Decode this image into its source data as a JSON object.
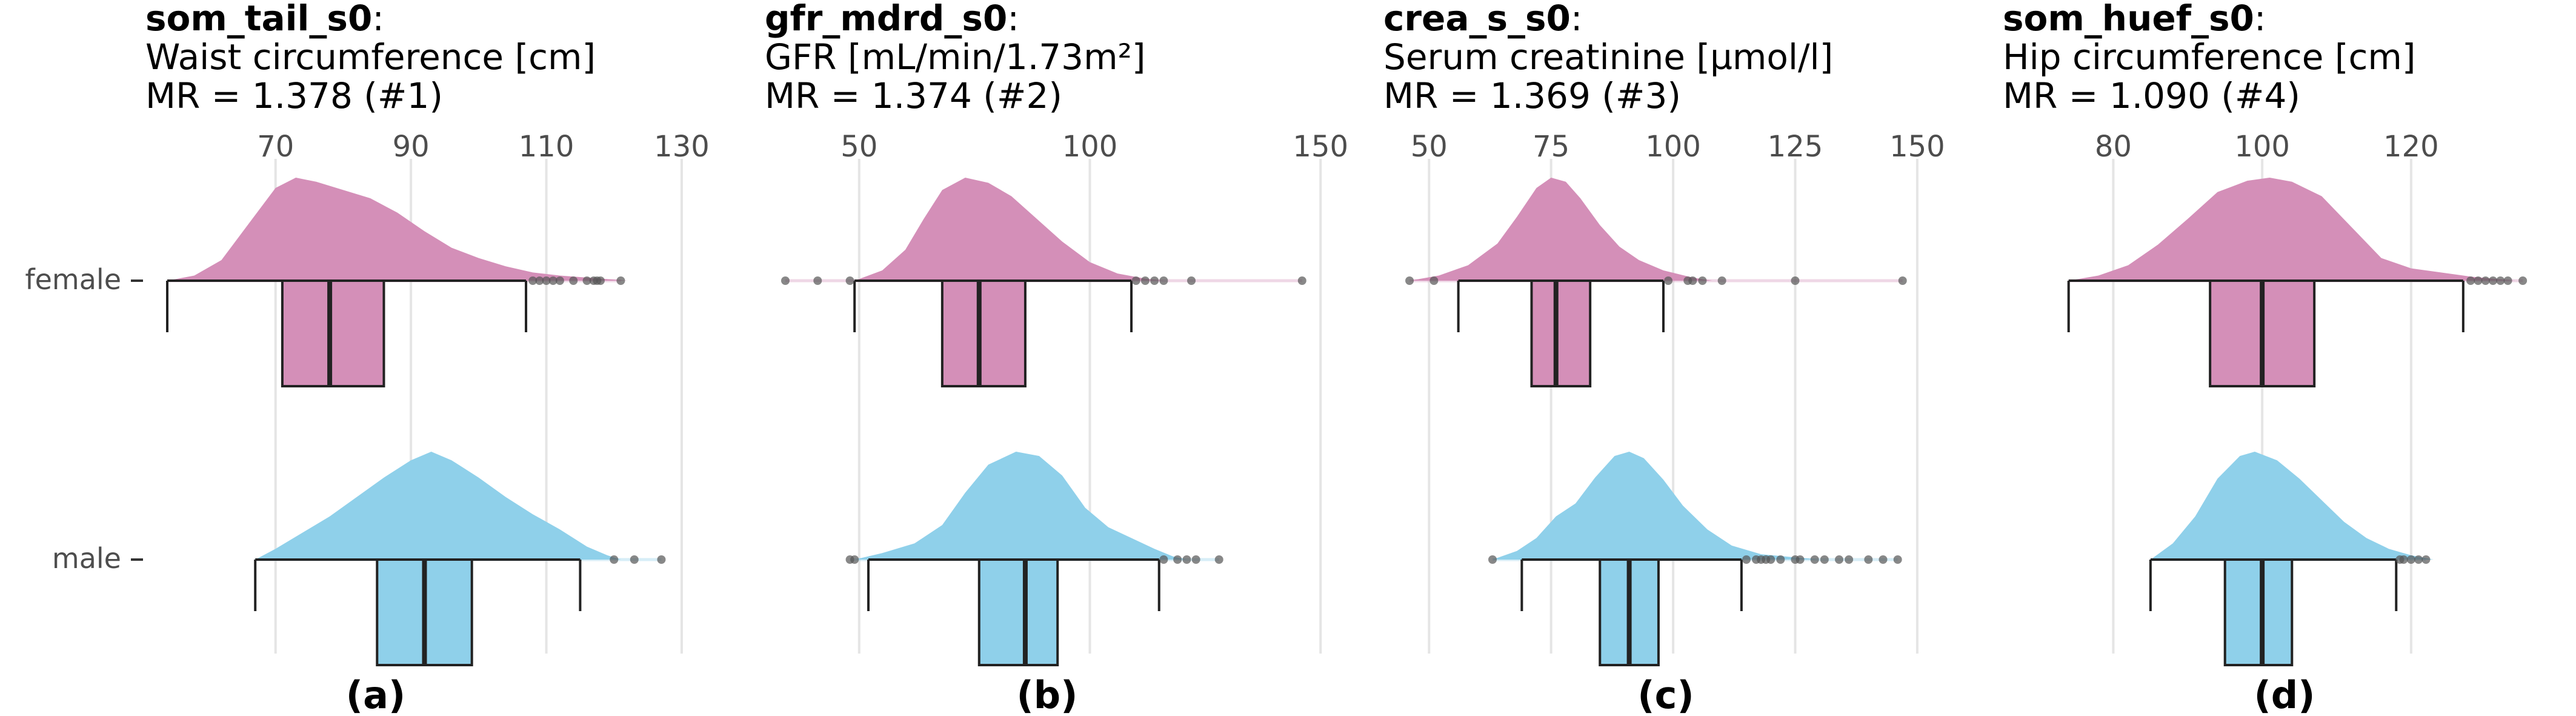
{
  "category_labels": [
    "female",
    "male"
  ],
  "colors": {
    "female": "#d48fb8",
    "male": "#8fd0ea",
    "outline": "#222222",
    "grid": "#e5e5e5",
    "outlier": "#555555"
  },
  "chart_data": [
    {
      "type": "boxplot-density",
      "tag": "(a)",
      "var_name": "som_tail_s0",
      "title_suffix": ":",
      "description": "Waist circumference [cm]",
      "mr_text": "MR = 1.378 (#1)",
      "xlim": [
        54,
        136
      ],
      "ticks": [
        70,
        90,
        110,
        130
      ],
      "grid_on": true,
      "groups": [
        {
          "name": "female",
          "min": 54,
          "q1": 71,
          "median": 78,
          "q3": 86,
          "max": 107,
          "density": [
            [
              54,
              0
            ],
            [
              58,
              0.05
            ],
            [
              62,
              0.2
            ],
            [
              66,
              0.55
            ],
            [
              70,
              0.9
            ],
            [
              73,
              1.0
            ],
            [
              76,
              0.96
            ],
            [
              80,
              0.88
            ],
            [
              84,
              0.8
            ],
            [
              88,
              0.66
            ],
            [
              92,
              0.48
            ],
            [
              96,
              0.32
            ],
            [
              100,
              0.22
            ],
            [
              104,
              0.14
            ],
            [
              108,
              0.08
            ],
            [
              112,
              0.05
            ],
            [
              116,
              0.03
            ],
            [
              120,
              0.01
            ],
            [
              122,
              0
            ]
          ],
          "outliers": [
            108,
            109,
            110,
            111,
            112,
            114,
            116,
            117,
            117.5,
            118,
            121
          ]
        },
        {
          "name": "male",
          "min": 67,
          "q1": 85,
          "median": 92,
          "q3": 99,
          "max": 115,
          "density": [
            [
              67,
              0
            ],
            [
              70,
              0.1
            ],
            [
              74,
              0.25
            ],
            [
              78,
              0.4
            ],
            [
              82,
              0.58
            ],
            [
              86,
              0.76
            ],
            [
              90,
              0.92
            ],
            [
              93,
              1.0
            ],
            [
              96,
              0.92
            ],
            [
              100,
              0.76
            ],
            [
              104,
              0.58
            ],
            [
              108,
              0.42
            ],
            [
              112,
              0.28
            ],
            [
              116,
              0.12
            ],
            [
              119,
              0.04
            ],
            [
              121,
              0
            ]
          ],
          "outliers": [
            120,
            123,
            127
          ]
        }
      ]
    },
    {
      "type": "boxplot-density",
      "tag": "(b)",
      "var_name": "gfr_mdrd_s0",
      "title_suffix": ":",
      "description": "GFR [mL/min/1.73m²]",
      "mr_text": "MR = 1.374 (#2)",
      "xlim": [
        34,
        148
      ],
      "ticks": [
        50,
        100,
        150
      ],
      "grid_on": true,
      "groups": [
        {
          "name": "female",
          "min": 49,
          "q1": 68,
          "median": 76,
          "q3": 86,
          "max": 109,
          "density": [
            [
              49,
              0
            ],
            [
              55,
              0.1
            ],
            [
              60,
              0.3
            ],
            [
              64,
              0.6
            ],
            [
              68,
              0.88
            ],
            [
              73,
              1.0
            ],
            [
              78,
              0.95
            ],
            [
              83,
              0.82
            ],
            [
              88,
              0.62
            ],
            [
              94,
              0.38
            ],
            [
              100,
              0.18
            ],
            [
              106,
              0.07
            ],
            [
              112,
              0.02
            ],
            [
              116,
              0
            ]
          ],
          "outliers": [
            34,
            41,
            48,
            110,
            112,
            114,
            116,
            122,
            146
          ]
        },
        {
          "name": "male",
          "min": 52,
          "q1": 76,
          "median": 86,
          "q3": 93,
          "max": 115,
          "density": [
            [
              49,
              0
            ],
            [
              55,
              0.06
            ],
            [
              62,
              0.15
            ],
            [
              68,
              0.32
            ],
            [
              73,
              0.62
            ],
            [
              78,
              0.88
            ],
            [
              84,
              1.0
            ],
            [
              89,
              0.96
            ],
            [
              94,
              0.78
            ],
            [
              99,
              0.48
            ],
            [
              104,
              0.3
            ],
            [
              110,
              0.18
            ],
            [
              114,
              0.1
            ],
            [
              118,
              0.03
            ],
            [
              121,
              0
            ]
          ],
          "outliers": [
            48,
            49,
            116,
            119,
            121,
            123,
            128
          ]
        }
      ]
    },
    {
      "type": "boxplot-density",
      "tag": "(c)",
      "var_name": "crea_s_s0",
      "title_suffix": ":",
      "description": "Serum creatinine [µmol/l]",
      "mr_text": "MR = 1.369 (#3)",
      "xlim": [
        45,
        152
      ],
      "ticks": [
        50,
        75,
        100,
        125,
        150
      ],
      "grid_on": true,
      "groups": [
        {
          "name": "female",
          "min": 56,
          "q1": 71,
          "median": 76,
          "q3": 83,
          "max": 98,
          "density": [
            [
              46,
              0
            ],
            [
              52,
              0.05
            ],
            [
              58,
              0.15
            ],
            [
              64,
              0.36
            ],
            [
              68,
              0.62
            ],
            [
              72,
              0.9
            ],
            [
              75,
              1.0
            ],
            [
              78,
              0.96
            ],
            [
              81,
              0.8
            ],
            [
              85,
              0.54
            ],
            [
              89,
              0.33
            ],
            [
              93,
              0.2
            ],
            [
              98,
              0.1
            ],
            [
              104,
              0.03
            ],
            [
              108,
              0
            ]
          ],
          "outliers": [
            46,
            51,
            99,
            103,
            104,
            106,
            110,
            125,
            147
          ]
        },
        {
          "name": "male",
          "min": 69,
          "q1": 85,
          "median": 91,
          "q3": 97,
          "max": 114,
          "density": [
            [
              63,
              0
            ],
            [
              68,
              0.08
            ],
            [
              72,
              0.2
            ],
            [
              76,
              0.4
            ],
            [
              80,
              0.52
            ],
            [
              84,
              0.76
            ],
            [
              88,
              0.96
            ],
            [
              91,
              1.0
            ],
            [
              94,
              0.94
            ],
            [
              98,
              0.74
            ],
            [
              102,
              0.5
            ],
            [
              107,
              0.28
            ],
            [
              112,
              0.13
            ],
            [
              118,
              0.05
            ],
            [
              125,
              0.02
            ],
            [
              130,
              0
            ]
          ],
          "outliers": [
            63,
            115,
            117,
            118,
            119,
            120,
            122,
            125,
            126,
            129,
            131,
            134,
            136,
            140,
            143,
            146
          ]
        }
      ]
    },
    {
      "type": "boxplot-density",
      "tag": "(d)",
      "var_name": "som_huef_s0",
      "title_suffix": ":",
      "description": "Hip circumference [cm]",
      "mr_text": "MR = 1.090 (#4)",
      "xlim": [
        68,
        138
      ],
      "ticks": [
        80,
        100,
        120
      ],
      "grid_on": true,
      "groups": [
        {
          "name": "female",
          "min": 74,
          "q1": 93,
          "median": 100,
          "q3": 107,
          "max": 127,
          "density": [
            [
              74,
              0
            ],
            [
              78,
              0.05
            ],
            [
              82,
              0.15
            ],
            [
              86,
              0.35
            ],
            [
              90,
              0.6
            ],
            [
              94,
              0.86
            ],
            [
              98,
              0.97
            ],
            [
              101,
              1.0
            ],
            [
              104,
              0.96
            ],
            [
              108,
              0.82
            ],
            [
              112,
              0.52
            ],
            [
              116,
              0.22
            ],
            [
              120,
              0.12
            ],
            [
              124,
              0.08
            ],
            [
              128,
              0.04
            ],
            [
              131,
              0.02
            ],
            [
              134,
              0
            ]
          ],
          "outliers": [
            128,
            129,
            130,
            131,
            132,
            133,
            135
          ]
        },
        {
          "name": "male",
          "min": 85,
          "q1": 95,
          "median": 100,
          "q3": 104,
          "max": 118,
          "density": [
            [
              85,
              0
            ],
            [
              88,
              0.15
            ],
            [
              91,
              0.4
            ],
            [
              94,
              0.75
            ],
            [
              97,
              0.96
            ],
            [
              99,
              1.0
            ],
            [
              102,
              0.92
            ],
            [
              105,
              0.75
            ],
            [
              108,
              0.55
            ],
            [
              111,
              0.35
            ],
            [
              114,
              0.2
            ],
            [
              117,
              0.1
            ],
            [
              120,
              0.04
            ],
            [
              123,
              0
            ]
          ],
          "outliers": [
            118.5,
            119,
            120,
            121,
            122
          ]
        }
      ]
    }
  ]
}
